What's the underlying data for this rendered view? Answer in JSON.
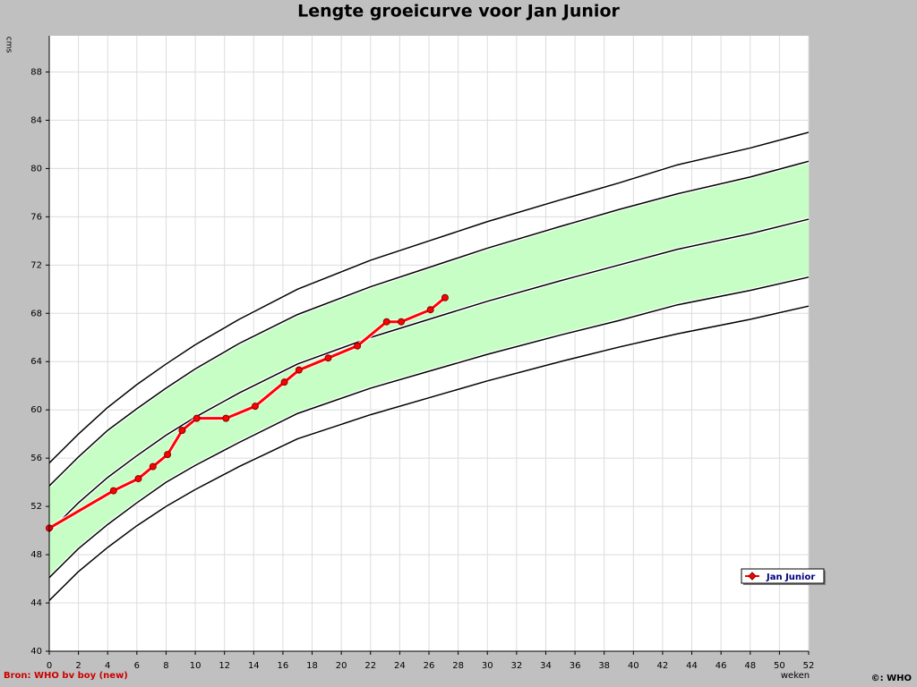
{
  "chart_data": {
    "type": "line",
    "title": "Lengte groeicurve voor Jan Junior",
    "y_label": "cms",
    "x_label": "weken",
    "source": "Bron: WHO bv boy (new)",
    "copyright": "©: WHO",
    "x": [
      0,
      1,
      2,
      4,
      6,
      8,
      10,
      13,
      17,
      22,
      26,
      30,
      35,
      39,
      43,
      48,
      52
    ],
    "series": [
      {
        "color": "#000000",
        "values": [
          44.2,
          45.4,
          46.6,
          48.6,
          50.4,
          52.0,
          53.4,
          55.3,
          57.6,
          59.6,
          61.0,
          62.4,
          64.0,
          65.2,
          66.3,
          67.5,
          68.6
        ]
      },
      {
        "color": "#000000",
        "values": [
          46.1,
          47.3,
          48.5,
          50.5,
          52.3,
          54.0,
          55.4,
          57.3,
          59.7,
          61.8,
          63.2,
          64.6,
          66.2,
          67.4,
          68.7,
          69.9,
          71.0
        ]
      },
      {
        "color": "#000000",
        "values": [
          49.9,
          51.1,
          52.3,
          54.4,
          56.2,
          57.9,
          59.4,
          61.4,
          63.8,
          66.0,
          67.5,
          69.0,
          70.7,
          72.0,
          73.3,
          74.6,
          75.8
        ]
      },
      {
        "color": "#000000",
        "values": [
          53.7,
          54.9,
          56.1,
          58.3,
          60.1,
          61.8,
          63.4,
          65.5,
          67.9,
          70.2,
          71.8,
          73.4,
          75.2,
          76.6,
          77.9,
          79.3,
          80.6
        ]
      },
      {
        "color": "#000000",
        "values": [
          55.6,
          56.8,
          58.0,
          60.2,
          62.1,
          63.8,
          65.4,
          67.5,
          70.0,
          72.4,
          74.0,
          75.6,
          77.4,
          78.8,
          80.3,
          81.7,
          83.0
        ]
      },
      {
        "name": "Jan Junior",
        "color": "#ff0000",
        "x": [
          0,
          4.4,
          6.1,
          7.1,
          8.1,
          9.1,
          10.1,
          12.1,
          14.1,
          16.1,
          17.1,
          19.1,
          21.1,
          23.1,
          24.1,
          26.1,
          27.1
        ],
        "values": [
          50.2,
          53.3,
          54.3,
          55.3,
          56.3,
          58.3,
          59.3,
          59.3,
          60.3,
          62.3,
          63.3,
          64.3,
          65.3,
          67.3,
          67.3,
          68.3,
          69.3
        ]
      }
    ],
    "band": {
      "color": "#c6fec6",
      "series": [
        1,
        3
      ]
    },
    "xlim": [
      0,
      52
    ],
    "ylim": [
      40,
      91
    ],
    "xticks": [
      0,
      2,
      4,
      6,
      8,
      10,
      12,
      14,
      16,
      18,
      20,
      22,
      24,
      26,
      28,
      30,
      32,
      34,
      36,
      38,
      40,
      42,
      44,
      46,
      48,
      50,
      52
    ],
    "yticks": [
      40,
      44,
      48,
      52,
      56,
      60,
      64,
      68,
      72,
      76,
      80,
      84,
      88
    ],
    "grid": true,
    "legend": "lower right"
  }
}
